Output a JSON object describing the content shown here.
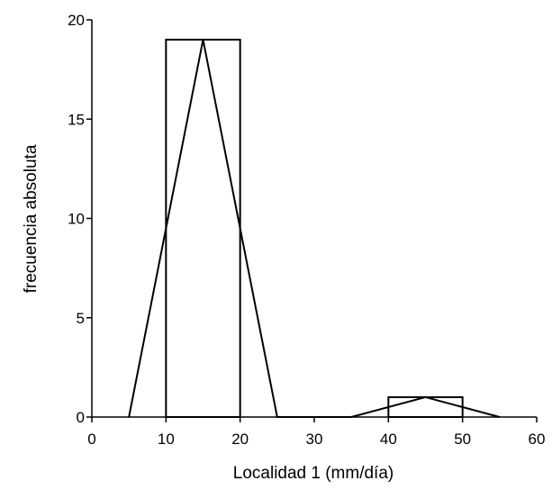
{
  "chart_data": {
    "type": "bar",
    "subtype": "histogram-with-frequency-polygon",
    "xlabel": "Localidad 1 (mm/día)",
    "ylabel": "frecuencia absoluta",
    "xlim": [
      0,
      60
    ],
    "ylim": [
      0,
      20
    ],
    "x_ticks": [
      0,
      10,
      20,
      30,
      40,
      50,
      60
    ],
    "y_ticks": [
      0,
      5,
      10,
      15,
      20
    ],
    "grid": false,
    "bins": [
      {
        "start": 10,
        "end": 20,
        "count": 19
      },
      {
        "start": 20,
        "end": 30,
        "count": 0
      },
      {
        "start": 30,
        "end": 40,
        "count": 0
      },
      {
        "start": 40,
        "end": 50,
        "count": 1
      }
    ],
    "polygon": {
      "x": [
        5,
        15,
        25,
        35,
        45,
        55
      ],
      "y": [
        0,
        19,
        0,
        0,
        1,
        0
      ]
    }
  }
}
